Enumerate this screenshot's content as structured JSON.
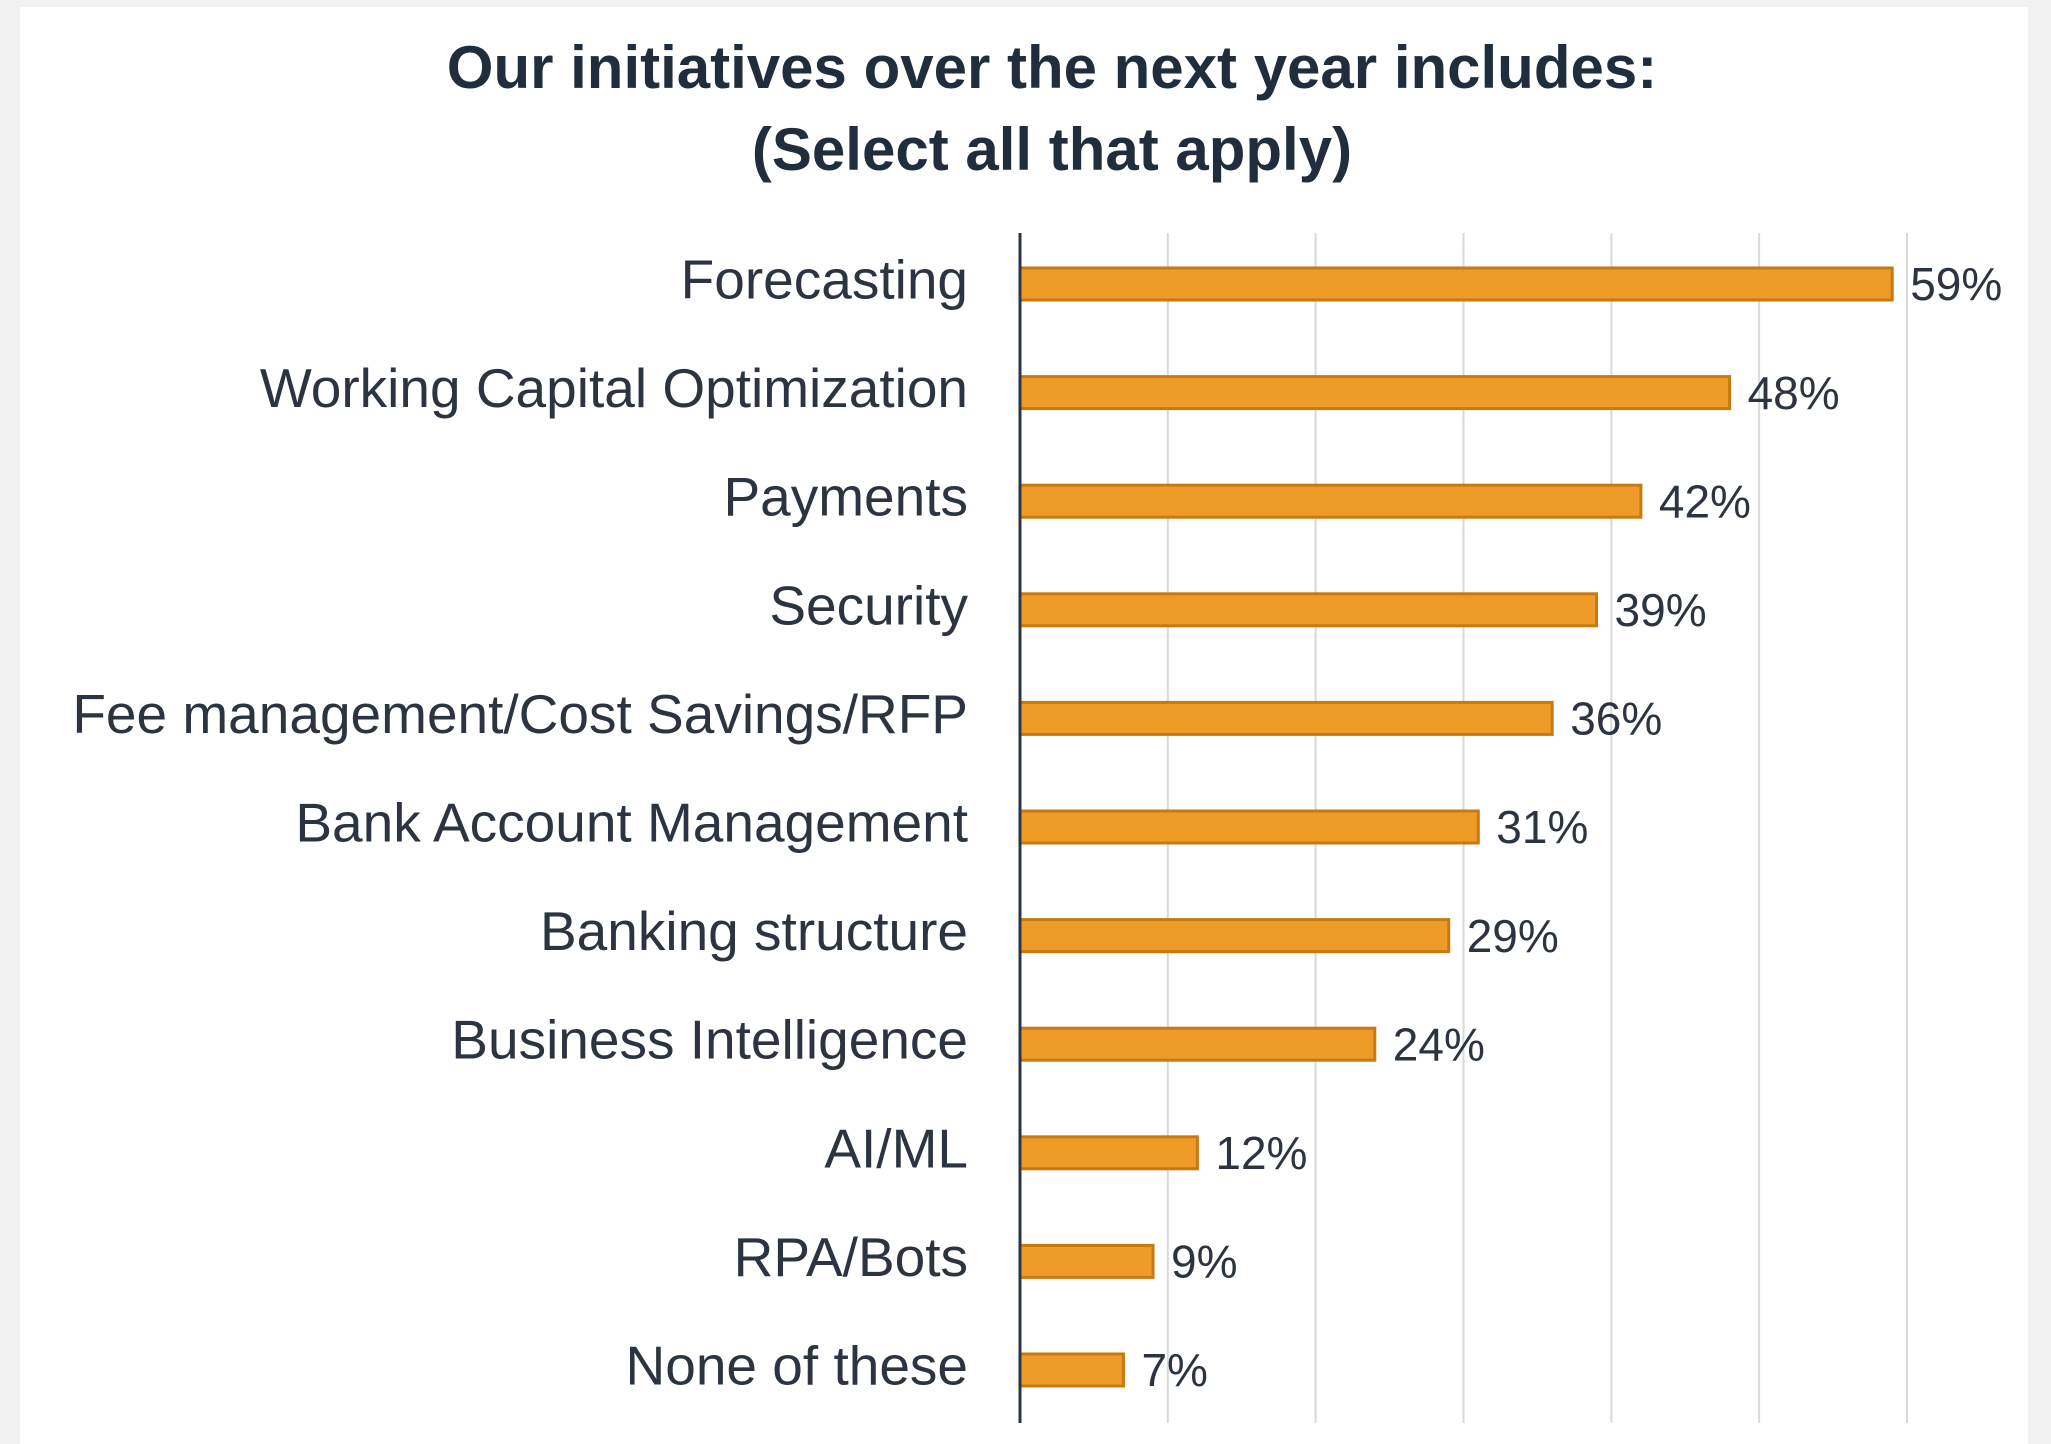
{
  "chart_data": {
    "type": "hbar",
    "title": "Our initiatives over the next year includes:",
    "subtitle": "(Select all that apply)",
    "categories": [
      "Forecasting",
      "Working Capital Optimization",
      "Payments",
      "Security",
      "Fee management/Cost Savings/RFP",
      "Bank Account Management",
      "Banking structure",
      "Business Intelligence",
      "AI/ML",
      "RPA/Bots",
      "None of these"
    ],
    "values": [
      59,
      48,
      42,
      39,
      36,
      31,
      29,
      24,
      12,
      9,
      7
    ],
    "value_labels": [
      "59%",
      "48%",
      "42%",
      "39%",
      "36%",
      "31%",
      "29%",
      "24%",
      "12%",
      "9%",
      "7%"
    ],
    "color": "#ef9b28",
    "xlim": [
      0,
      60
    ],
    "xticks": [
      0,
      10,
      20,
      30,
      40,
      50,
      60
    ],
    "grid": true
  }
}
